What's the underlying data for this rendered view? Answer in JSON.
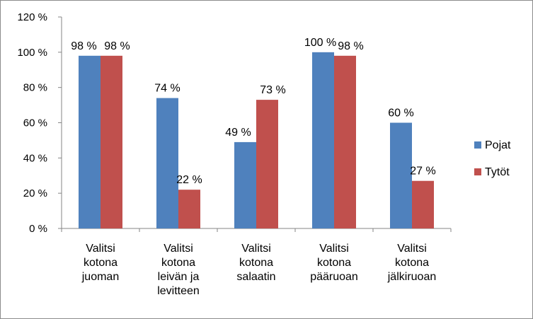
{
  "chart_data": {
    "type": "bar",
    "categories": [
      [
        "Valitsi",
        "kotona",
        "juoman"
      ],
      [
        "Valitsi",
        "kotona",
        "leivän ja",
        "levitteen"
      ],
      [
        "Valitsi",
        "kotona",
        "salaatin"
      ],
      [
        "Valitsi",
        "kotona",
        "pääruoan"
      ],
      [
        "Valitsi",
        "kotona",
        "jälkiruoan"
      ]
    ],
    "series": [
      {
        "name": "Pojat",
        "color": "#4f81bd",
        "values": [
          98,
          74,
          49,
          100,
          60
        ],
        "labels": [
          "98 %",
          "74 %",
          "49 %",
          "100 %",
          "60 %"
        ]
      },
      {
        "name": "Tytöt",
        "color": "#c0504d",
        "values": [
          98,
          22,
          73,
          98,
          27
        ],
        "labels": [
          "98 %",
          "22 %",
          "73 %",
          "98 %",
          "27 %"
        ]
      }
    ],
    "y_ticks": [
      0,
      20,
      40,
      60,
      80,
      100,
      120
    ],
    "y_tick_labels": [
      "0 %",
      "20 %",
      "40 %",
      "60 %",
      "80 %",
      "100 %",
      "120 %"
    ],
    "ylim": [
      0,
      120
    ],
    "grid": false,
    "legend": "right"
  }
}
